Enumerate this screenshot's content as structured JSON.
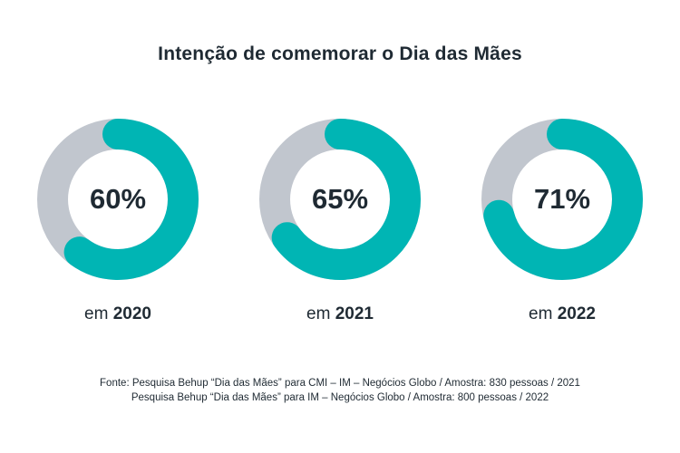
{
  "title": "Intenção de comemorar o Dia das Mães",
  "colors": {
    "filled": "#00b5b4",
    "remaining": "#c1c6ce"
  },
  "chart_data": {
    "type": "pie",
    "title": "Intenção de comemorar o Dia das Mães",
    "items": [
      {
        "value": 60,
        "pct_label": "60%",
        "prefix": "em",
        "year": "2020"
      },
      {
        "value": 65,
        "pct_label": "65%",
        "prefix": "em",
        "year": "2021"
      },
      {
        "value": 71,
        "pct_label": "71%",
        "prefix": "em",
        "year": "2022"
      }
    ]
  },
  "source": {
    "line1": "Fonte: Pesquisa Behup “Dia das Mães” para CMI – IM – Negócios Globo / Amostra: 830 pessoas / 2021",
    "line2": "Pesquisa Behup “Dia das Mães” para IM – Negócios Globo / Amostra: 800 pessoas / 2022"
  }
}
